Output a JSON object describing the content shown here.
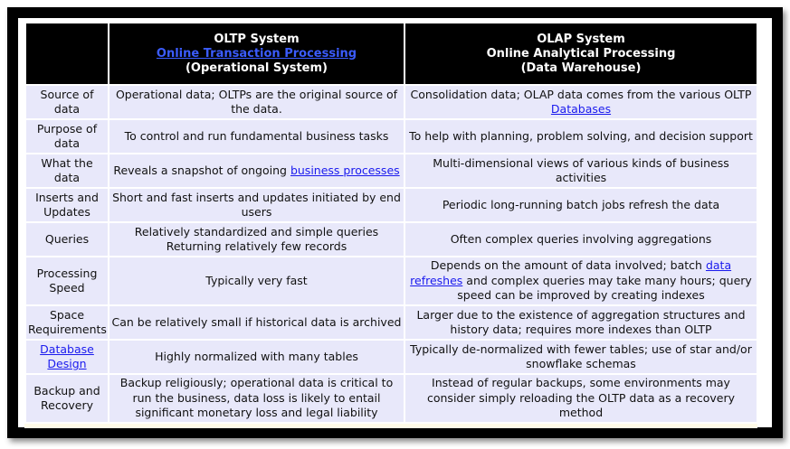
{
  "header": {
    "oltp": {
      "title": "OLTP System",
      "link": "Online Transaction Processing",
      "subtitle": "(Operational System)"
    },
    "olap": {
      "title": "OLAP System",
      "line2": "Online Analytical Processing",
      "subtitle": "(Data Warehouse)"
    }
  },
  "rows": [
    {
      "label": "Source of data",
      "oltp": "Operational data; OLTPs are the original source of the data.",
      "olap_pre": "Consolidation data; OLAP data comes from the various OLTP ",
      "olap_link": "Databases",
      "olap_post": ""
    },
    {
      "label": "Purpose of data",
      "oltp": "To control and run fundamental business tasks",
      "olap": "To help with planning, problem solving, and decision support"
    },
    {
      "label": "What the data",
      "oltp_pre": "Reveals a snapshot of ongoing ",
      "oltp_link": "business processes",
      "olap": "Multi-dimensional views of various kinds of business activities"
    },
    {
      "label": "Inserts and Updates",
      "oltp": "Short and fast inserts and updates initiated by end users",
      "olap": "Periodic long-running batch jobs refresh the data"
    },
    {
      "label": "Queries",
      "oltp": "Relatively standardized and simple queries Returning relatively few records",
      "olap": "Often complex queries involving aggregations"
    },
    {
      "label": "Processing Speed",
      "oltp": "Typically very fast",
      "olap_pre": "Depends on the amount of data involved; batch ",
      "olap_link": "data refreshes",
      "olap_post": " and complex queries may take many hours; query speed can be improved by creating indexes"
    },
    {
      "label": "Space Requirements",
      "oltp": "Can be relatively small if historical data is archived",
      "olap": "Larger due to the existence of aggregation structures and history data; requires more indexes than OLTP"
    },
    {
      "label_link": "Database Design",
      "oltp": "Highly normalized with many tables",
      "olap": "Typically de-normalized with fewer tables; use of star and/or snowflake schemas"
    },
    {
      "label": "Backup and Recovery",
      "oltp": "Backup religiously; operational data is critical to run the business, data loss is likely to entail significant monetary loss and legal liability",
      "olap": "Instead of regular backups, some environments may consider simply reloading the OLTP data as a recovery method"
    }
  ]
}
